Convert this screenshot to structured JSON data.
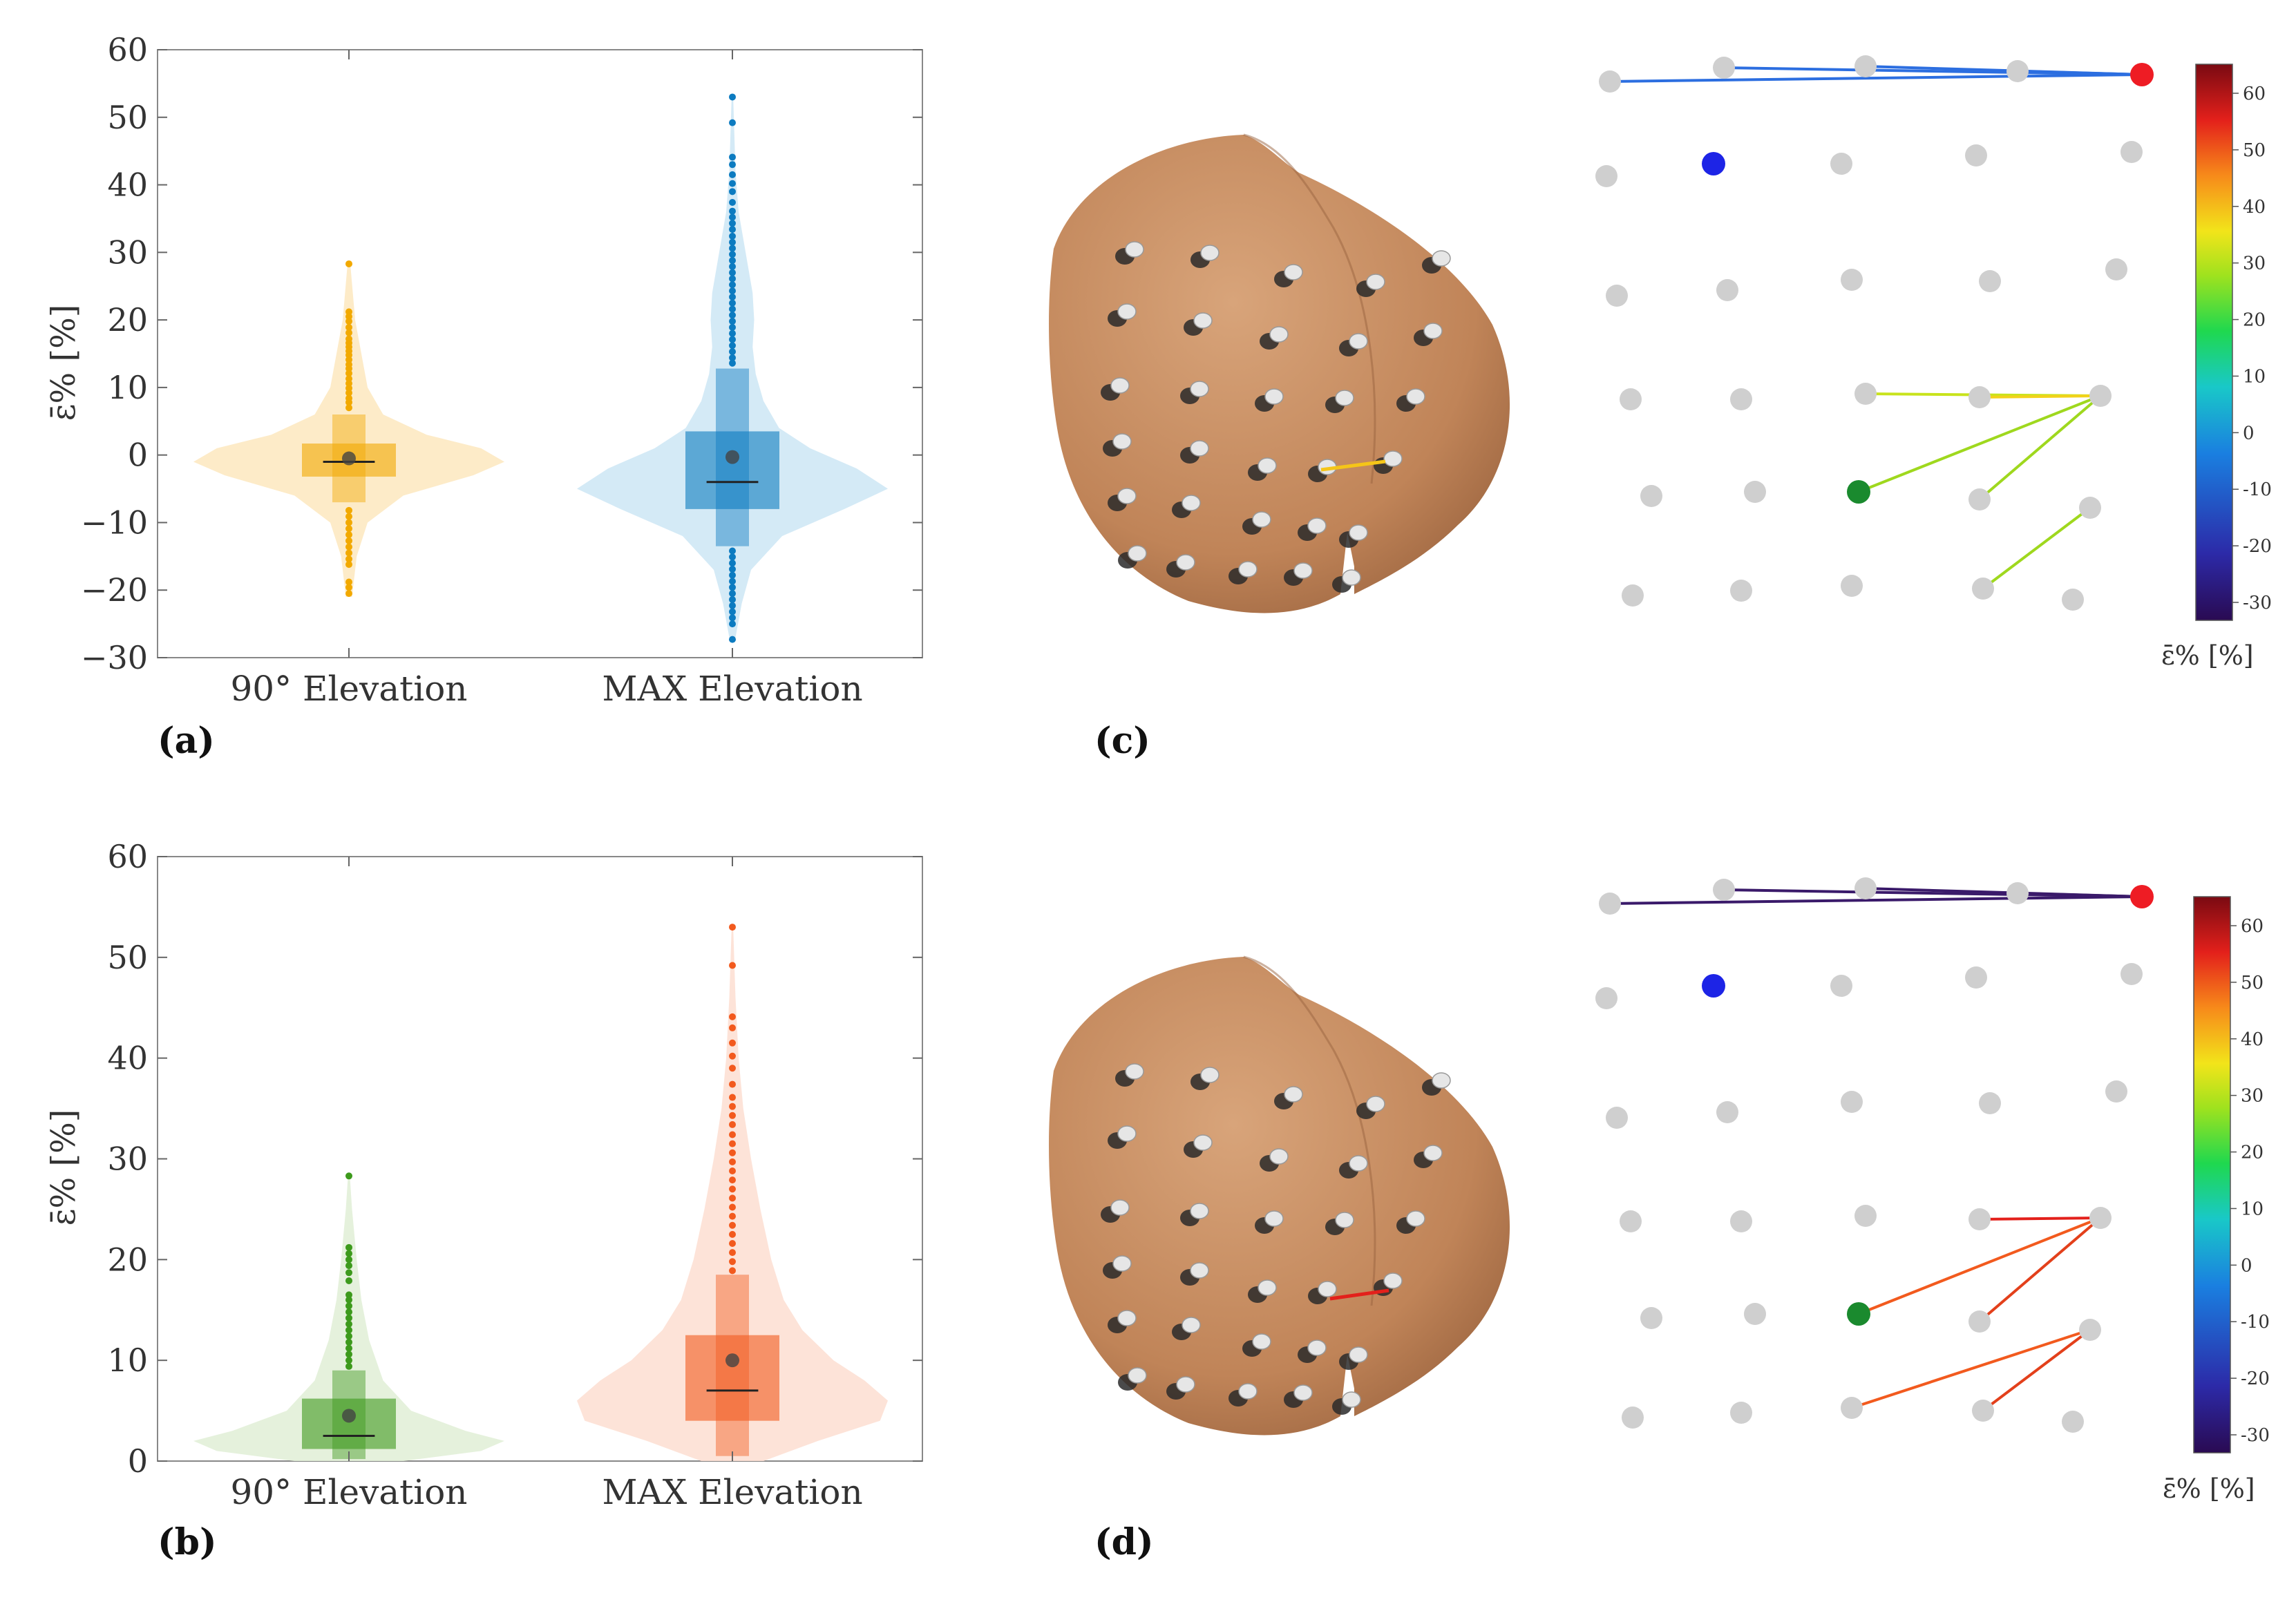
{
  "panel_labels": [
    "(a)",
    "(b)",
    "(c)",
    "(d)"
  ],
  "chart_data": [
    {
      "type": "violin",
      "panel": "(a)",
      "xlabel": "",
      "ylabel": "ε̄% [%]",
      "ylim": [
        -30,
        60
      ],
      "yticks": [
        -30,
        -20,
        -10,
        0,
        10,
        20,
        30,
        40,
        50,
        60
      ],
      "ytick_labels": [
        "−30",
        "−20",
        "−10",
        "0",
        "10",
        "20",
        "30",
        "40",
        "50",
        "60"
      ],
      "categories": [
        "90° Elevation",
        "MAX Elevation"
      ],
      "series": [
        {
          "name": "90° Elevation",
          "color": "#f2a900",
          "fill": "#fde9c2",
          "min": -20.5,
          "q1": -3.2,
          "median": -1.0,
          "q3": 1.7,
          "max": 28.3,
          "mean": -0.5,
          "whisker_low": -7,
          "whisker_high": 6,
          "density": [
            [
              -21,
              0.02
            ],
            [
              -15,
              0.05
            ],
            [
              -10,
              0.12
            ],
            [
              -6,
              0.35
            ],
            [
              -3,
              0.8
            ],
            [
              -1,
              1.0
            ],
            [
              1,
              0.85
            ],
            [
              3,
              0.5
            ],
            [
              6,
              0.22
            ],
            [
              10,
              0.12
            ],
            [
              15,
              0.08
            ],
            [
              20,
              0.04
            ],
            [
              28,
              0.01
            ]
          ],
          "outliers": [
            28.3,
            21.2,
            20.5,
            19.8,
            18.9,
            18.1,
            17.2,
            16.6,
            16.0,
            15.4,
            14.8,
            14.1,
            13.4,
            12.8,
            12.1,
            11.3,
            10.6,
            9.9,
            9.2,
            8.4,
            7.8,
            7.0,
            -8.2,
            -9.1,
            -10.0,
            -10.9,
            -11.8,
            -12.7,
            -13.6,
            -14.5,
            -15.4,
            -16.2,
            -18.8,
            -19.6,
            -20.5
          ]
        },
        {
          "name": "MAX Elevation",
          "color": "#0c7bc0",
          "fill": "#cfe8f5",
          "min": -27.3,
          "q1": -8.0,
          "median": -4.0,
          "q3": 3.5,
          "max": 53.0,
          "mean": -0.3,
          "whisker_low": -13.5,
          "whisker_high": 12.8,
          "density": [
            [
              -27,
              0.02
            ],
            [
              -22,
              0.06
            ],
            [
              -17,
              0.12
            ],
            [
              -12,
              0.32
            ],
            [
              -8,
              0.72
            ],
            [
              -5,
              1.0
            ],
            [
              -2,
              0.8
            ],
            [
              1,
              0.5
            ],
            [
              4,
              0.3
            ],
            [
              8,
              0.2
            ],
            [
              12,
              0.15
            ],
            [
              16,
              0.13
            ],
            [
              20,
              0.14
            ],
            [
              24,
              0.13
            ],
            [
              28,
              0.1
            ],
            [
              32,
              0.07
            ],
            [
              36,
              0.04
            ],
            [
              42,
              0.02
            ],
            [
              53,
              0.005
            ]
          ],
          "outliers": [
            53.0,
            49.2,
            44.1,
            43.0,
            41.5,
            40.2,
            39.0,
            37.4,
            36.1,
            35.2,
            34.3,
            33.4,
            32.4,
            31.5,
            30.6,
            29.7,
            28.8,
            27.9,
            27.0,
            26.1,
            25.2,
            24.3,
            23.4,
            22.5,
            21.6,
            20.7,
            19.8,
            18.9,
            18.0,
            17.1,
            16.2,
            15.3,
            14.4,
            13.6,
            -14.2,
            -15.1,
            -16.0,
            -16.9,
            -17.8,
            -18.7,
            -19.6,
            -20.5,
            -21.4,
            -22.3,
            -23.2,
            -24.1,
            -25.0,
            -27.3
          ]
        }
      ]
    },
    {
      "type": "violin",
      "panel": "(b)",
      "xlabel": "",
      "ylabel": "ε̄% [%]",
      "ylim": [
        0,
        60
      ],
      "yticks": [
        0,
        10,
        20,
        30,
        40,
        50,
        60
      ],
      "ytick_labels": [
        "0",
        "10",
        "20",
        "30",
        "40",
        "50",
        "60"
      ],
      "categories": [
        "90° Elevation",
        "MAX Elevation"
      ],
      "series": [
        {
          "name": "90° Elevation",
          "color": "#3d9a1c",
          "fill": "#e2efd8",
          "min": 0.0,
          "q1": 1.2,
          "median": 2.5,
          "q3": 6.2,
          "max": 28.3,
          "mean": 4.5,
          "whisker_low": 0.2,
          "whisker_high": 9.0,
          "density": [
            [
              0,
              0.35
            ],
            [
              1,
              0.85
            ],
            [
              2,
              1.0
            ],
            [
              3,
              0.75
            ],
            [
              5,
              0.4
            ],
            [
              8,
              0.22
            ],
            [
              12,
              0.13
            ],
            [
              16,
              0.08
            ],
            [
              20,
              0.05
            ],
            [
              25,
              0.02
            ],
            [
              28.5,
              0.005
            ]
          ],
          "outliers": [
            28.3,
            21.2,
            20.6,
            20.0,
            19.4,
            18.7,
            17.9,
            16.5,
            16.0,
            15.4,
            14.8,
            14.2,
            13.6,
            13.0,
            12.4,
            11.8,
            11.2,
            10.6,
            10.0,
            9.4
          ]
        },
        {
          "name": "MAX Elevation",
          "color": "#f25a1e",
          "fill": "#fde0d4",
          "min": 0.0,
          "q1": 4.0,
          "median": 7.0,
          "q3": 12.5,
          "max": 53.0,
          "mean": 10.0,
          "whisker_low": 0.5,
          "whisker_high": 18.5,
          "density": [
            [
              0,
              0.2
            ],
            [
              2,
              0.55
            ],
            [
              4,
              0.95
            ],
            [
              6,
              1.0
            ],
            [
              8,
              0.85
            ],
            [
              10,
              0.65
            ],
            [
              13,
              0.45
            ],
            [
              16,
              0.33
            ],
            [
              20,
              0.25
            ],
            [
              25,
              0.18
            ],
            [
              30,
              0.12
            ],
            [
              35,
              0.07
            ],
            [
              40,
              0.04
            ],
            [
              46,
              0.02
            ],
            [
              53,
              0.005
            ]
          ],
          "outliers": [
            53.0,
            49.2,
            44.1,
            43.0,
            41.5,
            40.2,
            39.0,
            37.4,
            36.1,
            35.2,
            34.3,
            33.4,
            32.4,
            31.5,
            30.6,
            29.7,
            28.8,
            27.9,
            27.0,
            26.1,
            25.2,
            24.3,
            23.4,
            22.5,
            21.6,
            20.7,
            19.8,
            18.9
          ]
        }
      ]
    }
  ],
  "colorbars": [
    {
      "panel": "(c)",
      "label": "ε̄%  [%]",
      "ticks": [
        "60",
        "50",
        "40",
        "30",
        "20",
        "10",
        "0",
        "-10",
        "-20",
        "-30"
      ]
    },
    {
      "panel": "(d)",
      "label": "ε̄%  [%]",
      "ticks": [
        "60",
        "50",
        "40",
        "30",
        "20",
        "10",
        "0",
        "-10",
        "-20",
        "-30"
      ]
    }
  ],
  "marker_colors": {
    "red": "#ee1c24",
    "blue": "#1d24e6",
    "green": "#1a8a2e",
    "grey": "#cfcfcf"
  },
  "skin_color": "#c99066"
}
